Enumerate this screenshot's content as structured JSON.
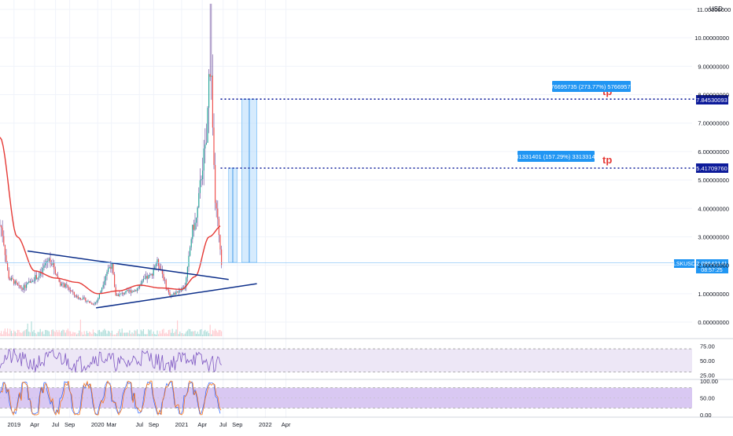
{
  "chart": {
    "currency_label": "USD",
    "ticker_label": "LSKUSD",
    "last_price_label": "2.08642141",
    "countdown_label": "08:57:25",
    "tp_label_1": "tp",
    "tp_label_2": "tp",
    "level_label_1": "5.41709760",
    "level_label_2": "7.84530093",
    "measure_label_1": "3.31331401 (157.29%) 331331401",
    "measure_label_2": "5.76695735 (273.77%) 576695735",
    "price_ticks": [
      "11.00000000",
      "10.00000000",
      "9.00000000",
      "8.00000000",
      "7.00000000",
      "6.00000000",
      "5.00000000",
      "4.00000000",
      "3.00000000",
      "2.00000000",
      "1.00000000",
      "0.00000000"
    ],
    "rsi_ticks": [
      "75.00",
      "50.00",
      "25.00"
    ],
    "stoch_ticks": [
      "100.00",
      "50.00",
      "0.00"
    ],
    "time_ticks": [
      "2019",
      "Apr",
      "Jul",
      "Sep",
      "2020",
      "Mar",
      "Jul",
      "Sep",
      "2021",
      "Apr",
      "Jul",
      "Sep",
      "2022",
      "Apr"
    ],
    "colors": {
      "up": "#26a69a",
      "down": "#ef5350",
      "candle_blend": "#7b5ea7",
      "ma": "#e53935",
      "trendline": "#0d2f8a",
      "level_line": "#0d1b9a",
      "measure_fill": "#bbdefb",
      "measure_label_bg": "#2196f3",
      "rsi": "#7e57c2",
      "rsi_band": "#ede7f6",
      "stoch_band": "#d9c8f2",
      "grid": "#f0f3fa",
      "text": "#131722"
    }
  },
  "chart_data": {
    "type": "candlestick",
    "ylim": [
      0,
      11
    ],
    "series": [
      {
        "name": "LSKUSD",
        "x": [
          "2018-11-01",
          "2018-12-15",
          "2019-02-01",
          "2019-04-15",
          "2019-06-01",
          "2019-08-01",
          "2019-10-15",
          "2019-12-15",
          "2020-03-01",
          "2020-03-20",
          "2020-06-01",
          "2020-08-15",
          "2020-09-15",
          "2020-11-15",
          "2021-01-10",
          "2021-02-25",
          "2021-04-15",
          "2021-05-05",
          "2021-06-01",
          "2021-06-25"
        ],
        "close": [
          3.4,
          1.5,
          1.2,
          1.6,
          2.2,
          1.3,
          0.85,
          0.65,
          2.0,
          0.95,
          1.1,
          1.6,
          2.1,
          0.95,
          1.2,
          3.4,
          6.0,
          9.1,
          3.8,
          2.09
        ]
      },
      {
        "name": "MA",
        "x": [
          "2018-11-01",
          "2019-01-15",
          "2019-04-01",
          "2019-07-01",
          "2019-10-01",
          "2020-01-01",
          "2020-04-01",
          "2020-07-01",
          "2020-10-01",
          "2021-01-01",
          "2021-03-01",
          "2021-05-01",
          "2021-06-25"
        ],
        "value": [
          6.5,
          3.0,
          1.8,
          1.55,
          1.4,
          1.0,
          1.1,
          1.3,
          1.2,
          1.15,
          1.6,
          3.0,
          3.4
        ]
      }
    ],
    "trendlines": [
      {
        "from": [
          "2019-03-01",
          2.5
        ],
        "to": [
          "2021-07-25",
          1.5
        ]
      },
      {
        "from": [
          "2019-12-25",
          0.5
        ],
        "to": [
          "2021-11-25",
          1.35
        ]
      }
    ],
    "levels": [
      5.4170976,
      7.84530093
    ],
    "rsi": {
      "ylim": [
        20,
        85
      ]
    },
    "stoch": {
      "ylim": [
        0,
        100
      ]
    }
  }
}
